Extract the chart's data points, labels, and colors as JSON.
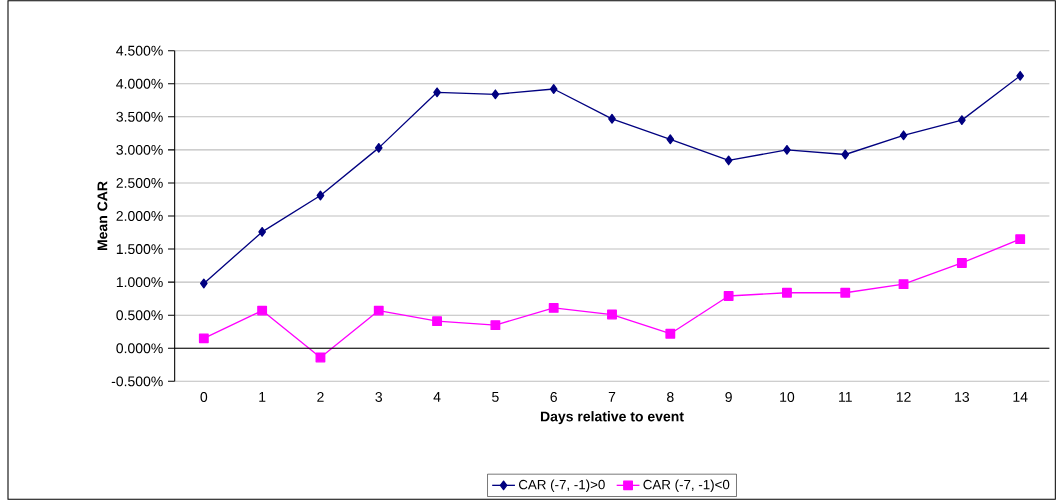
{
  "chart_data": {
    "type": "line",
    "xlabel": "Days relative to event",
    "ylabel": "Mean CAR",
    "categories": [
      "0",
      "1",
      "2",
      "3",
      "4",
      "5",
      "6",
      "7",
      "8",
      "9",
      "10",
      "11",
      "12",
      "13",
      "14"
    ],
    "series": [
      {
        "name": "CAR (-7, -1)>0",
        "color": "#000080",
        "marker": "diamond",
        "values": [
          0.98,
          1.76,
          2.31,
          3.03,
          3.87,
          3.84,
          3.92,
          3.47,
          3.16,
          2.84,
          3.0,
          2.93,
          3.22,
          3.45,
          4.12
        ]
      },
      {
        "name": "CAR (-7, -1)<0",
        "color": "#ff00ff",
        "marker": "square",
        "values": [
          0.15,
          0.57,
          -0.14,
          0.57,
          0.41,
          0.35,
          0.61,
          0.51,
          0.22,
          0.79,
          0.84,
          0.84,
          0.97,
          1.29,
          1.65
        ]
      }
    ],
    "ylim": [
      -0.5,
      4.5
    ],
    "yticks": [
      {
        "value": -0.5,
        "label": "-0.500%"
      },
      {
        "value": 0,
        "label": "0.000%"
      },
      {
        "value": 0.5,
        "label": "0.500%"
      },
      {
        "value": 1,
        "label": "1.000%"
      },
      {
        "value": 1.5,
        "label": "1.500%"
      },
      {
        "value": 2,
        "label": "2.000%"
      },
      {
        "value": 2.5,
        "label": "2.500%"
      },
      {
        "value": 3,
        "label": "3.000%"
      },
      {
        "value": 3.5,
        "label": "3.500%"
      },
      {
        "value": 4,
        "label": "4.000%"
      },
      {
        "value": 4.5,
        "label": "4.500%"
      }
    ],
    "grid": "y",
    "legend": "bottom"
  }
}
